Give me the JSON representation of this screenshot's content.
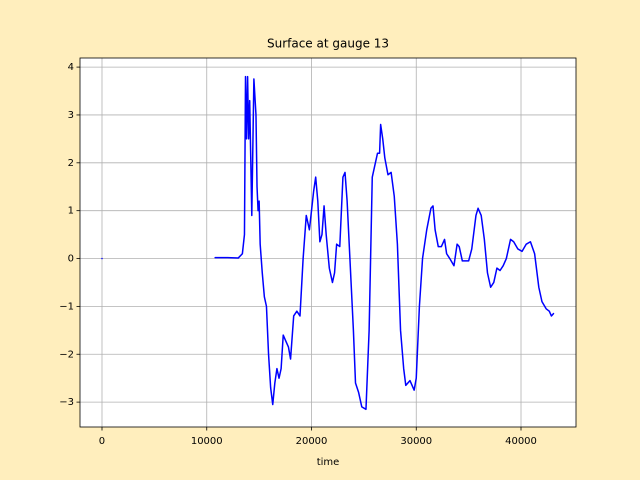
{
  "chart_data": {
    "type": "line",
    "title": "Surface at gauge 13",
    "xlabel": "time",
    "xlim": [
      -2100,
      45250
    ],
    "ylim": [
      -3.52,
      4.19
    ],
    "xticks": [
      0,
      10000,
      20000,
      30000,
      40000
    ],
    "yticks": [
      {
        "value": -3,
        "label": "−3"
      },
      {
        "value": -2,
        "label": "−2"
      },
      {
        "value": -1,
        "label": "−1"
      },
      0,
      1,
      2,
      3,
      4
    ],
    "grid": true,
    "x": [
      0,
      5000,
      10800,
      12000,
      13000,
      13400,
      13600,
      13700,
      13800,
      13900,
      14000,
      14100,
      14300,
      14500,
      14700,
      14800,
      14900,
      15000,
      15100,
      15300,
      15500,
      15700,
      15900,
      16100,
      16300,
      16500,
      16700,
      16900,
      17100,
      17300,
      17500,
      17800,
      18000,
      18300,
      18600,
      18900,
      19200,
      19500,
      19800,
      20200,
      20400,
      20600,
      20800,
      21000,
      21200,
      21400,
      21700,
      22000,
      22200,
      22400,
      22700,
      23000,
      23200,
      23400,
      23600,
      23800,
      24000,
      24200,
      24500,
      24800,
      25200,
      25500,
      25800,
      26100,
      26300,
      26500,
      26600,
      26800,
      27000,
      27300,
      27600,
      27900,
      28200,
      28500,
      28800,
      29000,
      29400,
      29800,
      30000,
      30300,
      30600,
      31000,
      31400,
      31600,
      31800,
      32100,
      32400,
      32700,
      32900,
      33200,
      33600,
      33900,
      34100,
      34400,
      34700,
      35000,
      35300,
      35700,
      35900,
      36200,
      36500,
      36800,
      37100,
      37400,
      37700,
      38000,
      38300,
      38600,
      39000,
      39300,
      39700,
      40100,
      40500,
      40900,
      41300,
      41700,
      42000,
      42400,
      42700,
      42900,
      43100
    ],
    "series": [
      {
        "name": "surface",
        "color": "#0000ff",
        "values": [
          0,
          null,
          0.02,
          0.02,
          0.01,
          0.1,
          0.5,
          3.8,
          2.5,
          3.8,
          2.5,
          3.3,
          0.9,
          3.75,
          3.0,
          1.5,
          1.0,
          1.2,
          0.3,
          -0.3,
          -0.8,
          -1.0,
          -2.0,
          -2.7,
          -3.05,
          -2.6,
          -2.3,
          -2.5,
          -2.3,
          -1.6,
          -1.7,
          -1.85,
          -2.1,
          -1.2,
          -1.1,
          -1.2,
          0.0,
          0.9,
          0.6,
          1.4,
          1.7,
          1.2,
          0.35,
          0.5,
          1.1,
          0.5,
          -0.2,
          -0.5,
          -0.3,
          0.3,
          0.25,
          1.7,
          1.8,
          1.2,
          0.3,
          -0.6,
          -1.5,
          -2.6,
          -2.8,
          -3.1,
          -3.15,
          -1.5,
          1.7,
          2.0,
          2.2,
          2.2,
          2.8,
          2.5,
          2.1,
          1.75,
          1.8,
          1.3,
          0.3,
          -1.5,
          -2.3,
          -2.65,
          -2.55,
          -2.75,
          -2.5,
          -1.0,
          0.0,
          0.6,
          1.05,
          1.1,
          0.6,
          0.25,
          0.25,
          0.4,
          0.1,
          0.0,
          -0.15,
          0.3,
          0.25,
          -0.05,
          -0.05,
          -0.05,
          0.2,
          0.9,
          1.05,
          0.9,
          0.4,
          -0.3,
          -0.6,
          -0.5,
          -0.2,
          -0.25,
          -0.15,
          0.0,
          0.4,
          0.35,
          0.2,
          0.15,
          0.3,
          0.35,
          0.1,
          -0.6,
          -0.9,
          -1.05,
          -1.1,
          -1.2,
          -1.15
        ]
      }
    ]
  }
}
